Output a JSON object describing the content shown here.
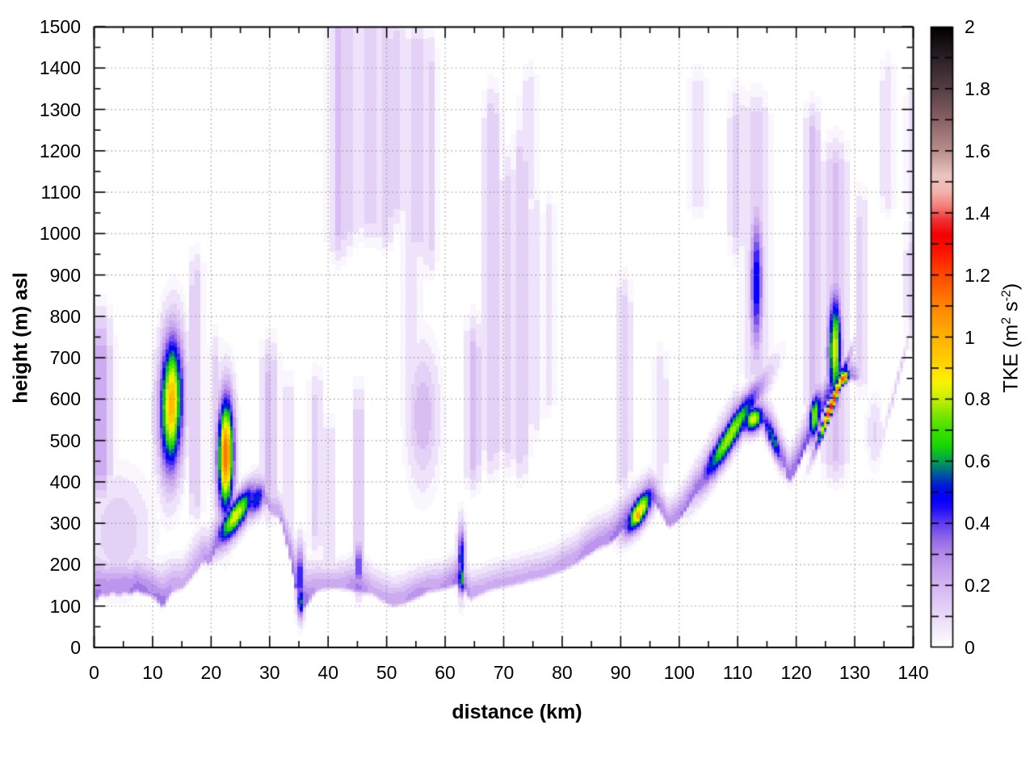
{
  "chart_data": {
    "type": "heatmap",
    "title": "",
    "xlabel": "distance (km)",
    "ylabel": "height (m) asl",
    "colorbar_label_parts": [
      {
        "t": "TKE (m"
      },
      {
        "t": "2",
        "sup": true
      },
      {
        "t": " s"
      },
      {
        "t": "-2",
        "sup": true
      },
      {
        "t": ")"
      }
    ],
    "x_range": [
      0,
      140
    ],
    "y_range": [
      0,
      1500
    ],
    "cb_range": [
      0,
      2
    ],
    "x_ticks": [
      0,
      10,
      20,
      30,
      40,
      50,
      60,
      70,
      80,
      90,
      100,
      110,
      120,
      130,
      140
    ],
    "y_ticks": [
      0,
      100,
      200,
      300,
      400,
      500,
      600,
      700,
      800,
      900,
      1000,
      1100,
      1200,
      1300,
      1400,
      1500
    ],
    "cb_ticks": [
      {
        "v": 2,
        "label": "2"
      },
      {
        "v": 1.9,
        "label": ""
      },
      {
        "v": 1.8,
        "label": "1.8"
      },
      {
        "v": 1.7,
        "label": ""
      },
      {
        "v": 1.6,
        "label": "1.6"
      },
      {
        "v": 1.5,
        "label": ""
      },
      {
        "v": 1.4,
        "label": "1.4"
      },
      {
        "v": 1.3,
        "label": ""
      },
      {
        "v": 1.2,
        "label": "1.2"
      },
      {
        "v": 1.1,
        "label": ""
      },
      {
        "v": 1,
        "label": "1"
      },
      {
        "v": 0.9,
        "label": ""
      },
      {
        "v": 0.8,
        "label": "0.8"
      },
      {
        "v": 0.7,
        "label": ""
      },
      {
        "v": 0.6,
        "label": "0.6"
      },
      {
        "v": 0.5,
        "label": ""
      },
      {
        "v": 0.4,
        "label": "0.4"
      },
      {
        "v": 0.3,
        "label": ""
      },
      {
        "v": 0.2,
        "label": "0.2"
      },
      {
        "v": 0.1,
        "label": ""
      },
      {
        "v": 0,
        "label": "0"
      }
    ],
    "x_minor_step": 5,
    "y_minor_step": 50,
    "grid": "dotted",
    "grid_color": "#9a9a9a",
    "contour_step": 0.05,
    "palette_stops": [
      [
        0.0,
        "#ffffff"
      ],
      [
        0.05,
        "#f4ecfb"
      ],
      [
        0.1,
        "#e9daf8"
      ],
      [
        0.15,
        "#dec8f5"
      ],
      [
        0.2,
        "#d3b5f1"
      ],
      [
        0.25,
        "#c6a1ee"
      ],
      [
        0.3,
        "#b289e9"
      ],
      [
        0.35,
        "#9168e8"
      ],
      [
        0.4,
        "#5c3cf0"
      ],
      [
        0.45,
        "#1c0bfb"
      ],
      [
        0.48,
        "#0000ff"
      ],
      [
        0.52,
        "#0018d8"
      ],
      [
        0.56,
        "#005c99"
      ],
      [
        0.6,
        "#00a150"
      ],
      [
        0.65,
        "#16d800"
      ],
      [
        0.7,
        "#3fdf00"
      ],
      [
        0.75,
        "#7ee600"
      ],
      [
        0.8,
        "#c6ee00"
      ],
      [
        0.85,
        "#f6f400"
      ],
      [
        0.88,
        "#ffe800"
      ],
      [
        0.92,
        "#ffd000"
      ],
      [
        1.0,
        "#ffb200"
      ],
      [
        1.1,
        "#ff8400"
      ],
      [
        1.2,
        "#ff4a00"
      ],
      [
        1.28,
        "#ff1000"
      ],
      [
        1.33,
        "#f40000"
      ],
      [
        1.38,
        "#ee3434"
      ],
      [
        1.42,
        "#f47c76"
      ],
      [
        1.47,
        "#f2b4ae"
      ],
      [
        1.52,
        "#ecc6c0"
      ],
      [
        1.6,
        "#b98e8c"
      ],
      [
        1.7,
        "#8a6265"
      ],
      [
        1.8,
        "#553f44"
      ],
      [
        1.9,
        "#2b2026"
      ],
      [
        2.0,
        "#000000"
      ]
    ],
    "surface_layer": [
      [
        0,
        118,
        95,
        0.32
      ],
      [
        1,
        136,
        75,
        0.3
      ],
      [
        2,
        130,
        72,
        0.3
      ],
      [
        3,
        142,
        70,
        0.28
      ],
      [
        4,
        131,
        72,
        0.3
      ],
      [
        5,
        141,
        68,
        0.3
      ],
      [
        6,
        134,
        66,
        0.3
      ],
      [
        7,
        144,
        64,
        0.32
      ],
      [
        8,
        137,
        63,
        0.32
      ],
      [
        9,
        134,
        62,
        0.3
      ],
      [
        10,
        128,
        60,
        0.3
      ],
      [
        11.5,
        102,
        72,
        0.33
      ],
      [
        13,
        140,
        60,
        0.25
      ],
      [
        15,
        150,
        55,
        0.22
      ],
      [
        17,
        185,
        70,
        0.22
      ],
      [
        18.5,
        215,
        60,
        0.25
      ],
      [
        19.5,
        205,
        60,
        0.28
      ],
      [
        21,
        252,
        70,
        0.35
      ],
      [
        23,
        290,
        70,
        0.3
      ],
      [
        25,
        318,
        62,
        0.28
      ],
      [
        27,
        352,
        55,
        0.3
      ],
      [
        28.5,
        372,
        50,
        0.3
      ],
      [
        30,
        328,
        46,
        0.25
      ],
      [
        31.5,
        322,
        46,
        0.25
      ],
      [
        33,
        240,
        60,
        0.28
      ],
      [
        35,
        92,
        95,
        0.4
      ],
      [
        36.5,
        115,
        70,
        0.3
      ],
      [
        37.5,
        140,
        55,
        0.25
      ],
      [
        39,
        148,
        50,
        0.22
      ],
      [
        41,
        150,
        46,
        0.22
      ],
      [
        43,
        148,
        50,
        0.25
      ],
      [
        45,
        140,
        65,
        0.32
      ],
      [
        47,
        138,
        50,
        0.22
      ],
      [
        49,
        120,
        50,
        0.22
      ],
      [
        51,
        106,
        50,
        0.25
      ],
      [
        53,
        115,
        50,
        0.25
      ],
      [
        55,
        126,
        50,
        0.28
      ],
      [
        57,
        142,
        46,
        0.25
      ],
      [
        59,
        146,
        46,
        0.25
      ],
      [
        61,
        155,
        50,
        0.3
      ],
      [
        62.5,
        162,
        60,
        0.38
      ],
      [
        64,
        122,
        50,
        0.25
      ],
      [
        66,
        136,
        46,
        0.22
      ],
      [
        68,
        148,
        46,
        0.22
      ],
      [
        70,
        154,
        46,
        0.22
      ],
      [
        72,
        160,
        46,
        0.22
      ],
      [
        74,
        168,
        46,
        0.22
      ],
      [
        76,
        174,
        46,
        0.22
      ],
      [
        78,
        184,
        46,
        0.22
      ],
      [
        80,
        194,
        50,
        0.25
      ],
      [
        82,
        208,
        50,
        0.25
      ],
      [
        84,
        228,
        55,
        0.28
      ],
      [
        86,
        248,
        55,
        0.28
      ],
      [
        88,
        258,
        55,
        0.3
      ],
      [
        90,
        285,
        60,
        0.35
      ],
      [
        92,
        318,
        55,
        0.4
      ],
      [
        94,
        352,
        50,
        0.4
      ],
      [
        95,
        366,
        50,
        0.38
      ],
      [
        96.5,
        336,
        46,
        0.3
      ],
      [
        98,
        296,
        46,
        0.28
      ],
      [
        100,
        318,
        50,
        0.3
      ],
      [
        102,
        360,
        55,
        0.32
      ],
      [
        104,
        400,
        60,
        0.35
      ],
      [
        106,
        452,
        60,
        0.4
      ],
      [
        108,
        502,
        60,
        0.42
      ],
      [
        109.5,
        545,
        55,
        0.42
      ],
      [
        110.5,
        522,
        55,
        0.4
      ],
      [
        112,
        542,
        55,
        0.42
      ],
      [
        113,
        556,
        55,
        0.42
      ],
      [
        114.5,
        542,
        50,
        0.4
      ],
      [
        116,
        505,
        50,
        0.38
      ],
      [
        117.5,
        452,
        50,
        0.35
      ],
      [
        118.5,
        402,
        55,
        0.35
      ],
      [
        120,
        438,
        60,
        0.35
      ],
      [
        122,
        505,
        60,
        0.38
      ],
      [
        124,
        565,
        60,
        0.4
      ],
      [
        126,
        622,
        55,
        0.42
      ],
      [
        127.5,
        648,
        50,
        0.4
      ],
      [
        129,
        655,
        45,
        0.33
      ],
      [
        130.2,
        650,
        38,
        0.22
      ],
      [
        131.2,
        658,
        25,
        0.08
      ],
      [
        132.2,
        660,
        20,
        0
      ],
      [
        140,
        700,
        20,
        0
      ]
    ],
    "blobs": [
      [
        13.0,
        590,
        1.35,
        112,
        8,
        1.0
      ],
      [
        22.3,
        465,
        0.95,
        97,
        5,
        1.15
      ],
      [
        24.0,
        318,
        2.3,
        30,
        17,
        0.85
      ],
      [
        27.5,
        358,
        1.2,
        26,
        10,
        0.55
      ],
      [
        35.0,
        168,
        0.5,
        56,
        0,
        0.5
      ],
      [
        35.1,
        112,
        0.4,
        30,
        0,
        0.6
      ],
      [
        45.0,
        195,
        0.45,
        42,
        0,
        0.46
      ],
      [
        62.6,
        215,
        0.45,
        55,
        0,
        0.55
      ],
      [
        62.6,
        168,
        0.38,
        28,
        0,
        0.7
      ],
      [
        93.0,
        330,
        1.7,
        27,
        16,
        0.9
      ],
      [
        92.8,
        320,
        0.8,
        16,
        16,
        1.05
      ],
      [
        108.5,
        512,
        3.6,
        30,
        22,
        0.8
      ],
      [
        112.5,
        552,
        1.3,
        22,
        5,
        0.85
      ],
      [
        115.8,
        505,
        1.4,
        24,
        -30,
        0.6
      ],
      [
        113.0,
        880,
        0.75,
        120,
        4,
        0.52
      ],
      [
        123.0,
        560,
        0.8,
        38,
        20,
        0.78
      ],
      [
        126.4,
        720,
        0.8,
        95,
        5,
        0.85
      ],
      [
        125.9,
        588,
        1.7,
        15,
        38,
        1.3
      ],
      [
        127.9,
        650,
        0.7,
        11,
        10,
        1.25
      ],
      [
        4.0,
        280,
        3.5,
        90,
        0,
        0.15
      ],
      [
        56.0,
        560,
        1.8,
        110,
        0,
        0.2
      ],
      [
        137.0,
        640,
        2.3,
        13,
        55,
        0.13
      ],
      [
        133.2,
        520,
        0.9,
        55,
        0,
        0.11
      ]
    ],
    "columns": [
      [
        1.0,
        420,
        720,
        1.2,
        0.22
      ],
      [
        17.2,
        380,
        860,
        0.8,
        0.15
      ],
      [
        20.6,
        430,
        660,
        0.7,
        0.13
      ],
      [
        29.8,
        380,
        650,
        1.0,
        0.16
      ],
      [
        33.0,
        330,
        560,
        0.7,
        0.12
      ],
      [
        37.8,
        300,
        570,
        0.9,
        0.13
      ],
      [
        40.0,
        260,
        460,
        0.8,
        0.11
      ],
      [
        45.0,
        230,
        540,
        0.7,
        0.15
      ],
      [
        41.6,
        1010,
        1520,
        1.1,
        0.16
      ],
      [
        43.6,
        1040,
        1520,
        0.8,
        0.13
      ],
      [
        47.0,
        1060,
        1520,
        1.4,
        0.14
      ],
      [
        49.6,
        1040,
        1470,
        1.0,
        0.15
      ],
      [
        51.6,
        1090,
        1450,
        0.8,
        0.12
      ],
      [
        55.0,
        1010,
        1430,
        1.2,
        0.13
      ],
      [
        57.2,
        970,
        1400,
        0.8,
        0.11
      ],
      [
        54.0,
        640,
        960,
        1.2,
        0.1
      ],
      [
        64.6,
        460,
        700,
        0.9,
        0.18
      ],
      [
        67.8,
        490,
        1260,
        0.9,
        0.15
      ],
      [
        70.6,
        500,
        1100,
        0.9,
        0.12
      ],
      [
        72.8,
        480,
        1160,
        0.9,
        0.14
      ],
      [
        75.2,
        580,
        1010,
        0.8,
        0.1
      ],
      [
        77.6,
        640,
        1000,
        0.7,
        0.09
      ],
      [
        74.2,
        1140,
        1310,
        1.0,
        0.1
      ],
      [
        90.3,
        450,
        800,
        0.9,
        0.14
      ],
      [
        96.6,
        460,
        630,
        0.8,
        0.1
      ],
      [
        103.0,
        1120,
        1300,
        1.2,
        0.1
      ],
      [
        109.6,
        1010,
        1260,
        0.9,
        0.11
      ],
      [
        113.0,
        700,
        1240,
        1.4,
        0.15
      ],
      [
        122.6,
        640,
        1210,
        0.9,
        0.2
      ],
      [
        126.5,
        480,
        1130,
        1.4,
        0.18
      ],
      [
        130.9,
        690,
        1010,
        0.7,
        0.13
      ],
      [
        135.4,
        1120,
        1330,
        0.9,
        0.1
      ],
      [
        139.5,
        810,
        950,
        0.8,
        0.11
      ],
      [
        139.5,
        1090,
        1280,
        0.7,
        0.09
      ]
    ]
  }
}
